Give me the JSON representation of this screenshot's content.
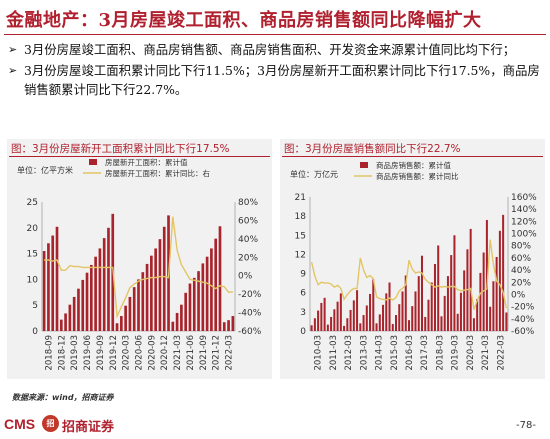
{
  "header": {
    "title": "金融地产：3月房屋竣工面积、商品房销售额同比降幅扩大"
  },
  "bullets": [
    "3月份房屋竣工面积、商品房销售额、商品房销售面积、开发资金来源累计值同比均下行；",
    "3月份房屋竣工面积累计同比下行11.5%；3月份房屋新开工面积累计同比下行17.5%，商品房销售额累计同比下行22.7%。"
  ],
  "bullet_marker": "➢",
  "source_note": "数据来源：wind，招商证券",
  "footer": {
    "brand": "CMS",
    "logo_text": "招",
    "company": "招商证券",
    "page_number": "-78-"
  },
  "colors": {
    "accent": "#b0202e",
    "bar": "#a8232b",
    "line": "#e3c565",
    "panel_bg": "#f1f1f1"
  },
  "chart_data": [
    {
      "type": "bar",
      "title": "图：3月份房屋新开工面积累计同比下行17.5%",
      "unit": "单位：亿平方米",
      "legend": [
        {
          "name": "房屋新开工面积：累计值",
          "kind": "bar"
        },
        {
          "name": "房屋新开工面积：累计同比：右",
          "kind": "line"
        }
      ],
      "x_tick_labels": [
        "2018-09",
        "2018-12",
        "2019-03",
        "2019-06",
        "2019-09",
        "2019-12",
        "2020-03",
        "2020-06",
        "2020-09",
        "2020-12",
        "2021-03",
        "2021-06",
        "2021-09",
        "2021-12",
        "2022-03"
      ],
      "y_left": {
        "min": 0,
        "max": 25,
        "ticks": [
          0,
          5,
          10,
          15,
          20,
          25
        ]
      },
      "y_right": {
        "min": -60,
        "max": 80,
        "ticks": [
          "-60%",
          "-40%",
          "-20%",
          "0%",
          "20%",
          "40%",
          "60%",
          "80%"
        ]
      },
      "series": [
        {
          "name": "房屋新开工面积：累计值",
          "kind": "bar",
          "values": [
            15.5,
            17.0,
            18.5,
            20.2,
            2.2,
            3.4,
            5.1,
            6.6,
            8.2,
            9.9,
            11.3,
            12.8,
            14.4,
            16.0,
            18.0,
            20.0,
            22.7,
            1.5,
            2.9,
            4.9,
            6.6,
            8.5,
            10.0,
            11.4,
            13.0,
            14.6,
            16.0,
            17.8,
            20.2,
            22.4,
            1.8,
            3.5,
            5.1,
            7.4,
            9.2,
            10.3,
            11.6,
            13.1,
            14.4,
            16.0,
            17.9,
            20.3,
            1.7,
            2.1,
            2.9
          ]
        },
        {
          "name": "房屋新开工面积：累计同比：右",
          "kind": "line",
          "values": [
            17,
            17,
            16,
            17,
            6,
            6,
            11,
            10,
            10,
            9,
            9,
            9,
            9,
            9,
            9,
            9,
            9,
            -44,
            -34,
            -24,
            -13,
            -9,
            -6,
            -4,
            -3,
            -2,
            -2,
            -1,
            -1,
            -2,
            64,
            28,
            12,
            4,
            -4,
            -5,
            -6,
            -7,
            -8,
            -11,
            -14,
            -11,
            -12,
            -18,
            -17.5
          ]
        }
      ]
    },
    {
      "type": "bar",
      "title": "图：3月份房屋销售额同比下行22.7%",
      "unit": "单位：万亿元",
      "legend": [
        {
          "name": "商品房销售额：累计值",
          "kind": "bar"
        },
        {
          "name": "商品房销售额：累计同比",
          "kind": "line"
        }
      ],
      "x_tick_labels": [
        "2010-03",
        "2011-03",
        "2012-03",
        "2013-03",
        "2014-03",
        "2015-03",
        "2016-03",
        "2017-03",
        "2018-03",
        "2019-03",
        "2020-03",
        "2021-03",
        "2022-03"
      ],
      "y_left": {
        "min": 0,
        "max": 21,
        "ticks": [
          0,
          3,
          6,
          9,
          12,
          15,
          18,
          21
        ]
      },
      "y_right": {
        "min": -60,
        "max": 160,
        "ticks": [
          "-60%",
          "-40%",
          "-20%",
          "0%",
          "20%",
          "40%",
          "60%",
          "80%",
          "100%",
          "120%",
          "140%",
          "160%"
        ]
      },
      "series": [
        {
          "name": "商品房销售额：累计值",
          "kind": "bar",
          "values": [
            0.9,
            2.0,
            3.2,
            4.4,
            5.2,
            1.0,
            2.2,
            3.4,
            4.6,
            5.9,
            0.8,
            2.0,
            3.3,
            4.8,
            6.4,
            1.2,
            2.5,
            4.0,
            5.8,
            8.1,
            1.2,
            2.6,
            4.1,
            5.9,
            7.6,
            1.1,
            2.5,
            4.2,
            6.2,
            8.7,
            1.7,
            3.9,
            6.2,
            8.6,
            11.8,
            2.2,
            4.9,
            7.6,
            10.5,
            13.4,
            2.3,
            5.5,
            8.6,
            11.9,
            15.0,
            2.7,
            6.0,
            9.5,
            12.8,
            16.0,
            2.0,
            5.0,
            9.1,
            12.3,
            17.4,
            3.8,
            7.8,
            11.6,
            15.7,
            18.2,
            2.9
          ]
        },
        {
          "name": "商品房销售额：累计同比",
          "kind": "line",
          "values": [
            53,
            30,
            16,
            20,
            19,
            19,
            17,
            12,
            15,
            10,
            -8,
            0,
            6,
            10,
            10,
            60,
            40,
            28,
            31,
            26,
            -4,
            -7,
            -8,
            -9,
            -6,
            -9,
            -5,
            6,
            10,
            16,
            56,
            42,
            35,
            37,
            35,
            25,
            20,
            16,
            12,
            14,
            12,
            13,
            12,
            13,
            13,
            8,
            6,
            7,
            8,
            10,
            -25,
            -10,
            2,
            6,
            9,
            90,
            50,
            22,
            16,
            4,
            -22.7
          ]
        }
      ]
    }
  ]
}
